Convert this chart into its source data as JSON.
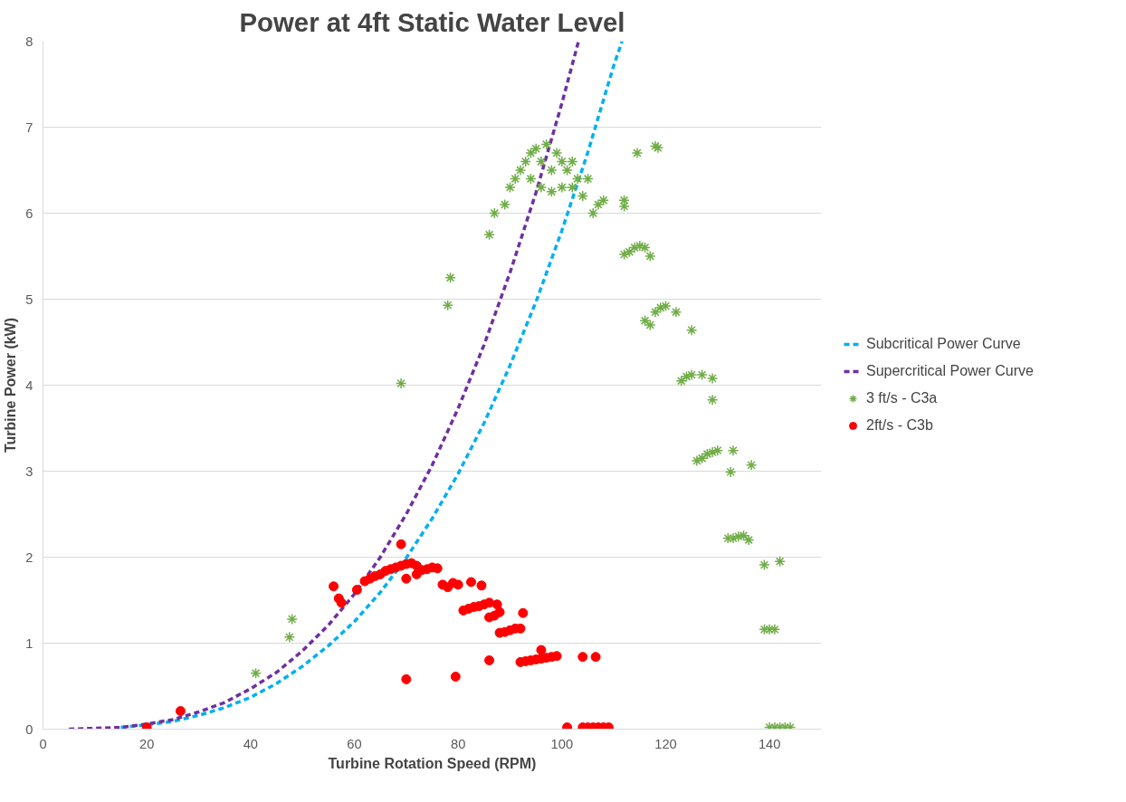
{
  "chart_data": {
    "type": "scatter",
    "title": "Power at 4ft Static Water Level",
    "xlabel": "Turbine Rotation Speed (RPM)",
    "ylabel": "Turbine Power (kW)",
    "xlim": [
      0,
      150
    ],
    "xticks": [
      0,
      20,
      40,
      60,
      80,
      100,
      120,
      140
    ],
    "ylim": [
      0,
      8
    ],
    "yticks": [
      0,
      1,
      2,
      3,
      4,
      5,
      6,
      7,
      8
    ],
    "grid": "y",
    "legend": "right",
    "series": [
      {
        "name": "Subcritical Power Curve",
        "type": "line",
        "line_style": "dashed",
        "marker": "none",
        "color": "#00b0f0",
        "x": [
          15,
          20,
          25,
          30,
          35,
          40,
          45,
          50,
          55,
          60,
          65,
          70,
          75,
          80,
          85,
          90,
          95,
          100,
          105,
          110,
          111.6
        ],
        "values": [
          0.02,
          0.05,
          0.09,
          0.16,
          0.25,
          0.37,
          0.53,
          0.73,
          0.97,
          1.25,
          1.59,
          1.99,
          2.45,
          2.97,
          3.56,
          4.23,
          4.97,
          5.8,
          6.71,
          7.72,
          8.0
        ]
      },
      {
        "name": "Supercritical Power Curve",
        "type": "line",
        "line_style": "dashed",
        "marker": "none",
        "color": "#7030a0",
        "x": [
          5,
          10,
          15,
          20,
          25,
          30,
          35,
          40,
          45,
          50,
          55,
          60,
          65,
          70,
          75,
          80,
          85,
          90,
          95,
          100,
          103.2
        ],
        "values": [
          0.0,
          0.01,
          0.02,
          0.06,
          0.11,
          0.2,
          0.31,
          0.47,
          0.66,
          0.91,
          1.21,
          1.57,
          2.0,
          2.5,
          3.07,
          3.73,
          4.47,
          5.31,
          6.24,
          7.28,
          8.0
        ]
      },
      {
        "name": "3 ft/s - C3a",
        "marker": "cross",
        "color": "#70ad47",
        "x": [
          69,
          41,
          47.5,
          48,
          78,
          78.5,
          86,
          87,
          89,
          90,
          91,
          92,
          93,
          94,
          95,
          96,
          97,
          98,
          99,
          100,
          101,
          102,
          103,
          104,
          105,
          94,
          96,
          98,
          100,
          102,
          106,
          107,
          108,
          112,
          112,
          114.5,
          118,
          118.5,
          112,
          113,
          114,
          115,
          116,
          117,
          116,
          117,
          118,
          119,
          120,
          122,
          125,
          123,
          124,
          125,
          127,
          129,
          129,
          126,
          127,
          128,
          129,
          130,
          133,
          132.5,
          136.5,
          132,
          133,
          134,
          135,
          136,
          139,
          142,
          139,
          140,
          141,
          140,
          141,
          142,
          143,
          144
        ],
        "values": [
          4.02,
          0.65,
          1.07,
          1.28,
          4.93,
          5.25,
          5.75,
          6.0,
          6.1,
          6.3,
          6.4,
          6.5,
          6.6,
          6.7,
          6.75,
          6.6,
          6.8,
          6.5,
          6.7,
          6.6,
          6.5,
          6.3,
          6.4,
          6.2,
          6.4,
          6.4,
          6.3,
          6.25,
          6.3,
          6.6,
          6.0,
          6.1,
          6.15,
          6.15,
          6.08,
          6.7,
          6.78,
          6.76,
          5.52,
          5.55,
          5.6,
          5.62,
          5.6,
          5.5,
          4.75,
          4.7,
          4.85,
          4.9,
          4.92,
          4.85,
          4.64,
          4.05,
          4.1,
          4.12,
          4.12,
          4.08,
          3.83,
          3.12,
          3.15,
          3.2,
          3.22,
          3.24,
          3.24,
          2.99,
          3.07,
          2.22,
          2.22,
          2.24,
          2.25,
          2.2,
          1.91,
          1.95,
          1.16,
          1.16,
          1.16,
          0.02,
          0.02,
          0.02,
          0.02,
          0.02
        ]
      },
      {
        "name": "2ft/s - C3b",
        "marker": "circle",
        "color": "#ff0000",
        "x": [
          20,
          26.5,
          56,
          57,
          57.5,
          60.5,
          62,
          63,
          64,
          65,
          66,
          67,
          68,
          69,
          69,
          70,
          71,
          72,
          73,
          70,
          72,
          74,
          75,
          76,
          77,
          78,
          79,
          80,
          82.5,
          84.5,
          70,
          79.5,
          81,
          82,
          83,
          84,
          85,
          86,
          86,
          87,
          88,
          87.5,
          92.5,
          88,
          89,
          90,
          91,
          92,
          86,
          92,
          93,
          94,
          95,
          96,
          97,
          98,
          99,
          96,
          104,
          106.5,
          101,
          104,
          105,
          106,
          107,
          108,
          109
        ],
        "values": [
          0.02,
          0.21,
          1.66,
          1.52,
          1.47,
          1.62,
          1.72,
          1.75,
          1.78,
          1.8,
          1.84,
          1.86,
          1.88,
          1.9,
          2.15,
          1.92,
          1.93,
          1.9,
          1.85,
          1.75,
          1.8,
          1.86,
          1.88,
          1.87,
          1.68,
          1.65,
          1.7,
          1.68,
          1.71,
          1.67,
          0.58,
          0.61,
          1.38,
          1.4,
          1.42,
          1.43,
          1.45,
          1.47,
          1.3,
          1.32,
          1.36,
          1.45,
          1.35,
          1.12,
          1.13,
          1.15,
          1.17,
          1.17,
          0.8,
          0.78,
          0.79,
          0.8,
          0.81,
          0.82,
          0.83,
          0.84,
          0.85,
          0.92,
          0.84,
          0.84,
          0.02,
          0.02,
          0.02,
          0.02,
          0.02,
          0.02,
          0.02
        ]
      }
    ]
  }
}
